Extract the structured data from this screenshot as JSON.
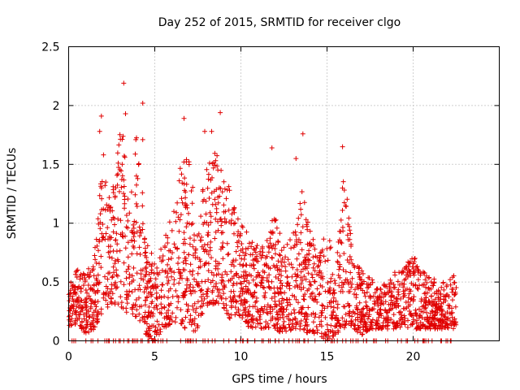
{
  "chart_data": {
    "type": "scatter",
    "title": "Day 252 of 2015, SRMTID for receiver clgo",
    "xlabel": "GPS time / hours",
    "ylabel": "SRMTID / TECUs",
    "xlim": [
      0,
      25
    ],
    "ylim": [
      0,
      2.5
    ],
    "xticks": [
      0,
      5,
      10,
      15,
      20
    ],
    "xtick_labels": [
      "0",
      "5",
      "10",
      "15",
      "20"
    ],
    "yticks": [
      0,
      0.5,
      1,
      1.5,
      2,
      2.5
    ],
    "ytick_labels": [
      "0",
      "0.5",
      "1",
      "1.5",
      "2",
      "2.5"
    ],
    "grid": true,
    "marker": "plus",
    "color": "#e00000",
    "series": [
      {
        "name": "SRMTID",
        "envelope": {
          "x_hours": [
            0,
            0.5,
            1,
            1.5,
            2,
            2.5,
            3,
            3.5,
            4,
            4.5,
            5,
            5.5,
            6,
            6.5,
            7,
            7.5,
            8,
            8.5,
            9,
            9.5,
            10,
            10.5,
            11,
            11.5,
            12,
            12.5,
            13,
            13.5,
            14,
            14.5,
            15,
            15.5,
            16,
            16.5,
            17,
            17.5,
            18,
            18.5,
            19,
            19.5,
            20,
            20.5,
            21,
            21.5,
            22,
            22.5
          ],
          "typical_max": [
            0.45,
            0.65,
            0.55,
            0.75,
            1.6,
            1.2,
            1.9,
            1.4,
            1.8,
            0.9,
            0.7,
            0.85,
            1.1,
            1.5,
            1.6,
            1.0,
            1.5,
            1.6,
            1.5,
            1.2,
            1.0,
            0.9,
            0.8,
            0.9,
            1.1,
            0.8,
            0.9,
            1.3,
            1.0,
            0.7,
            1.0,
            0.6,
            1.5,
            0.7,
            0.6,
            0.55,
            0.45,
            0.5,
            0.6,
            0.65,
            0.75,
            0.6,
            0.55,
            0.5,
            0.5,
            0.6
          ],
          "typical_min": [
            0.1,
            0.15,
            0.05,
            0.1,
            0.25,
            0.3,
            0.3,
            0.2,
            0.2,
            0.05,
            0.0,
            0.1,
            0.15,
            0.15,
            0.05,
            0.1,
            0.3,
            0.3,
            0.25,
            0.15,
            0.2,
            0.1,
            0.1,
            0.1,
            0.1,
            0.05,
            0.1,
            0.1,
            0.05,
            0.05,
            0.0,
            0.05,
            0.1,
            0.1,
            0.05,
            0.1,
            0.1,
            0.1,
            0.1,
            0.1,
            0.1,
            0.1,
            0.1,
            0.1,
            0.1,
            0.1
          ]
        },
        "outliers": [
          [
            3.2,
            2.19
          ],
          [
            4.3,
            2.02
          ],
          [
            3.3,
            1.93
          ],
          [
            1.9,
            1.91
          ],
          [
            6.7,
            1.89
          ],
          [
            8.8,
            1.94
          ],
          [
            8.3,
            1.78
          ],
          [
            1.8,
            1.78
          ],
          [
            13.6,
            1.76
          ],
          [
            15.9,
            1.65
          ],
          [
            11.8,
            1.64
          ],
          [
            4.3,
            1.71
          ],
          [
            3.9,
            1.71
          ],
          [
            13.2,
            1.55
          ],
          [
            7.9,
            1.78
          ]
        ],
        "zero_values_hours": [
          0.2,
          0.4,
          1.0,
          1.3,
          1.4,
          2.1,
          2.3,
          3.0,
          3.2,
          3.5,
          3.8,
          4.0,
          4.2,
          4.6,
          4.9,
          5.2,
          6.5,
          6.8,
          7.1,
          7.4,
          7.8,
          8.1,
          8.5,
          9.0,
          9.3,
          9.7,
          10.1,
          10.4,
          10.8,
          11.3,
          11.7,
          12.2,
          12.5,
          13.0,
          13.4,
          13.9,
          14.3,
          14.9,
          15.3,
          15.6,
          16.1,
          16.5,
          16.8,
          17.3,
          17.7,
          18.4,
          19.1,
          19.6,
          20.1,
          20.6,
          21.1,
          21.6,
          22.0,
          22.2
        ]
      }
    ]
  }
}
